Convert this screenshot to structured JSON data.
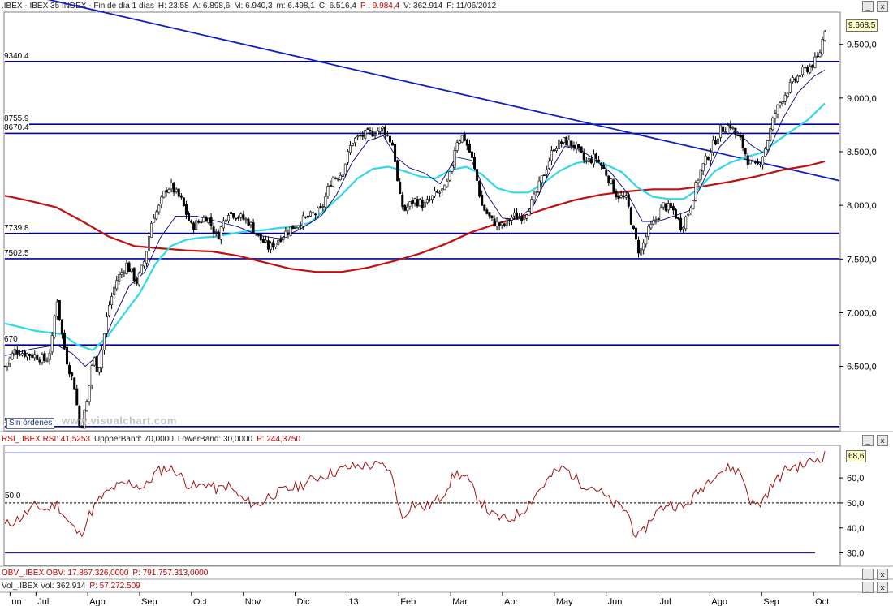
{
  "header_main": {
    "symbol": ".IBEX - IBEX 35 INDEX - Fin de día 1 días",
    "h": "H: 23:58",
    "a": "A: 6.898,6",
    "m": "M: 6.940,3",
    "mi": "m: 6.498,1",
    "c": "C: 6.516,4",
    "p": "P : 9.984,4",
    "v": "V: 362.914",
    "f": "F: 11/06/2012"
  },
  "header_rsi": {
    "label": "RSI_.IBEX RSI: 41,5253",
    "upper": "UppperBand: 70,0000",
    "lower": "LowerBand: 30,0000",
    "p": "P: 244,3750"
  },
  "header_obv": {
    "label": "OBV_.IBEX OBV: 17.867.326,0000",
    "p": "P: 791.757.313,0000"
  },
  "header_vol": {
    "label": "Vol_.IBEX Vol: 362.914",
    "p": "P: 57.272.509"
  },
  "controls": {
    "minimize": "_",
    "close": "x"
  },
  "watermark": "www.visualchart.com",
  "orders_label": "Sin órdenes",
  "colors": {
    "price": "#000000",
    "support_lines": "#0000a0",
    "trendline": "#1020c0",
    "ma_short": "#000080",
    "ma_mid": "#30d8e8",
    "ma_long": "#c01010",
    "rsi": "#a01010",
    "text_red": "#c00000"
  },
  "chart_data": [
    {
      "type": "candlestick",
      "title": ".IBEX - IBEX 35 INDEX",
      "ylim": [
        5900,
        9800
      ],
      "yticks": [
        "9.500,0",
        "9.000,0",
        "8.500,0",
        "8.000,0",
        "7.500,0",
        "7.000,0",
        "6.500,0"
      ],
      "ytick_values": [
        9500,
        9000,
        8500,
        8000,
        7500,
        7000,
        6500
      ],
      "last_value_label": "9.668,5",
      "last_value": 9668.5,
      "x_months": [
        "un",
        "Jul",
        "Ago",
        "Sep",
        "Oct",
        "Nov",
        "Dic",
        "13",
        "Feb",
        "Mar",
        "Abr",
        "May",
        "Jun",
        "Jul",
        "Ago",
        "Sep",
        "Oct"
      ],
      "x_month_positions": [
        0,
        0.5,
        1.5,
        2.5,
        3.5,
        4.5,
        5.5,
        6.5,
        7.5,
        8.5,
        9.5,
        10.5,
        11.5,
        12.5,
        13.5,
        14.5,
        15.5
      ],
      "x_range": [
        -0.1,
        16.0
      ],
      "horizontal_levels": [
        {
          "label": "9340.4",
          "value": 9340.4
        },
        {
          "label": "8755.9",
          "value": 8755.9
        },
        {
          "label": "8670.4",
          "value": 8670.4
        },
        {
          "label": "7739.8",
          "value": 7739.8
        },
        {
          "label": "7502.5",
          "value": 7502.5
        },
        {
          "label": "670",
          "value": 6700
        },
        {
          "label": "5939.4",
          "value": 5939.4
        }
      ],
      "trendline": {
        "from": [
          -0.1,
          10010
        ],
        "to": [
          16.0,
          8230
        ]
      },
      "price_close": [
        [
          -0.1,
          6500
        ],
        [
          0.1,
          6650
        ],
        [
          0.3,
          6620
        ],
        [
          0.5,
          6600
        ],
        [
          0.7,
          6550
        ],
        [
          0.8,
          6700
        ],
        [
          0.9,
          7150
        ],
        [
          1.0,
          6800
        ],
        [
          1.1,
          6550
        ],
        [
          1.25,
          6300
        ],
        [
          1.35,
          5900
        ],
        [
          1.5,
          6200
        ],
        [
          1.6,
          6600
        ],
        [
          1.7,
          6450
        ],
        [
          1.9,
          7050
        ],
        [
          2.05,
          7300
        ],
        [
          2.25,
          7450
        ],
        [
          2.45,
          7280
        ],
        [
          2.6,
          7500
        ],
        [
          2.75,
          7900
        ],
        [
          2.85,
          7950
        ],
        [
          3.0,
          8150
        ],
        [
          3.1,
          8180
        ],
        [
          3.3,
          8050
        ],
        [
          3.5,
          7800
        ],
        [
          3.8,
          7900
        ],
        [
          4.0,
          7700
        ],
        [
          4.2,
          7950
        ],
        [
          4.4,
          7900
        ],
        [
          4.6,
          7850
        ],
        [
          4.8,
          7700
        ],
        [
          5.0,
          7600
        ],
        [
          5.2,
          7700
        ],
        [
          5.4,
          7780
        ],
        [
          5.6,
          7850
        ],
        [
          5.8,
          7900
        ],
        [
          6.0,
          7950
        ],
        [
          6.2,
          8250
        ],
        [
          6.4,
          8300
        ],
        [
          6.6,
          8600
        ],
        [
          6.8,
          8650
        ],
        [
          7.0,
          8680
        ],
        [
          7.2,
          8720
        ],
        [
          7.4,
          8550
        ],
        [
          7.5,
          8100
        ],
        [
          7.6,
          7950
        ],
        [
          7.8,
          8050
        ],
        [
          8.0,
          8000
        ],
        [
          8.2,
          8100
        ],
        [
          8.4,
          8150
        ],
        [
          8.5,
          8300
        ],
        [
          8.6,
          8600
        ],
        [
          8.75,
          8650
        ],
        [
          8.9,
          8450
        ],
        [
          9.0,
          8250
        ],
        [
          9.1,
          8000
        ],
        [
          9.3,
          7850
        ],
        [
          9.5,
          7800
        ],
        [
          9.7,
          7900
        ],
        [
          9.9,
          7900
        ],
        [
          10.1,
          8050
        ],
        [
          10.3,
          8300
        ],
        [
          10.5,
          8550
        ],
        [
          10.7,
          8600
        ],
        [
          10.9,
          8550
        ],
        [
          11.1,
          8400
        ],
        [
          11.3,
          8450
        ],
        [
          11.5,
          8300
        ],
        [
          11.7,
          8100
        ],
        [
          11.9,
          8050
        ],
        [
          12.05,
          7700
        ],
        [
          12.15,
          7550
        ],
        [
          12.3,
          7750
        ],
        [
          12.5,
          7900
        ],
        [
          12.6,
          8000
        ],
        [
          12.8,
          7950
        ],
        [
          12.95,
          7800
        ],
        [
          13.1,
          7950
        ],
        [
          13.3,
          8300
        ],
        [
          13.5,
          8500
        ],
        [
          13.7,
          8700
        ],
        [
          13.9,
          8750
        ],
        [
          14.0,
          8650
        ],
        [
          14.1,
          8600
        ],
        [
          14.25,
          8400
        ],
        [
          14.4,
          8350
        ],
        [
          14.55,
          8500
        ],
        [
          14.75,
          8850
        ],
        [
          14.9,
          9000
        ],
        [
          15.1,
          9150
        ],
        [
          15.3,
          9250
        ],
        [
          15.45,
          9300
        ],
        [
          15.6,
          9380
        ],
        [
          15.72,
          9650
        ]
      ],
      "ma_short": [
        [
          -0.1,
          6600
        ],
        [
          0.4,
          6660
        ],
        [
          0.9,
          6700
        ],
        [
          1.2,
          6620
        ],
        [
          1.45,
          6500
        ],
        [
          1.7,
          6600
        ],
        [
          2.0,
          6950
        ],
        [
          2.3,
          7250
        ],
        [
          2.6,
          7380
        ],
        [
          2.9,
          7700
        ],
        [
          3.2,
          7900
        ],
        [
          3.6,
          7900
        ],
        [
          4.0,
          7850
        ],
        [
          4.4,
          7800
        ],
        [
          4.8,
          7720
        ],
        [
          5.2,
          7690
        ],
        [
          5.6,
          7780
        ],
        [
          6.0,
          7900
        ],
        [
          6.3,
          8100
        ],
        [
          6.6,
          8400
        ],
        [
          6.9,
          8600
        ],
        [
          7.2,
          8650
        ],
        [
          7.45,
          8450
        ],
        [
          7.7,
          8350
        ],
        [
          8.0,
          8300
        ],
        [
          8.3,
          8200
        ],
        [
          8.6,
          8450
        ],
        [
          8.9,
          8420
        ],
        [
          9.2,
          8100
        ],
        [
          9.5,
          7880
        ],
        [
          9.8,
          7870
        ],
        [
          10.1,
          8000
        ],
        [
          10.4,
          8300
        ],
        [
          10.7,
          8550
        ],
        [
          11.0,
          8520
        ],
        [
          11.3,
          8420
        ],
        [
          11.6,
          8300
        ],
        [
          11.9,
          8120
        ],
        [
          12.2,
          7850
        ],
        [
          12.5,
          7850
        ],
        [
          12.8,
          7900
        ],
        [
          13.1,
          7950
        ],
        [
          13.4,
          8250
        ],
        [
          13.7,
          8550
        ],
        [
          14.0,
          8700
        ],
        [
          14.3,
          8560
        ],
        [
          14.6,
          8470
        ],
        [
          14.9,
          8800
        ],
        [
          15.2,
          9050
        ],
        [
          15.5,
          9200
        ],
        [
          15.72,
          9260
        ]
      ],
      "ma_mid": [
        [
          -0.1,
          6900
        ],
        [
          0.5,
          6830
        ],
        [
          1.0,
          6800
        ],
        [
          1.3,
          6700
        ],
        [
          1.6,
          6650
        ],
        [
          1.9,
          6790
        ],
        [
          2.2,
          6990
        ],
        [
          2.5,
          7180
        ],
        [
          2.8,
          7450
        ],
        [
          3.1,
          7620
        ],
        [
          3.4,
          7680
        ],
        [
          3.7,
          7700
        ],
        [
          4.0,
          7710
        ],
        [
          4.3,
          7740
        ],
        [
          4.6,
          7760
        ],
        [
          4.9,
          7770
        ],
        [
          5.2,
          7790
        ],
        [
          5.5,
          7800
        ],
        [
          5.8,
          7840
        ],
        [
          6.1,
          7970
        ],
        [
          6.4,
          8100
        ],
        [
          6.7,
          8250
        ],
        [
          7.0,
          8340
        ],
        [
          7.3,
          8360
        ],
        [
          7.6,
          8320
        ],
        [
          7.9,
          8270
        ],
        [
          8.2,
          8250
        ],
        [
          8.5,
          8330
        ],
        [
          8.8,
          8360
        ],
        [
          9.1,
          8290
        ],
        [
          9.4,
          8160
        ],
        [
          9.7,
          8120
        ],
        [
          10.0,
          8120
        ],
        [
          10.3,
          8210
        ],
        [
          10.6,
          8320
        ],
        [
          10.9,
          8390
        ],
        [
          11.2,
          8420
        ],
        [
          11.5,
          8380
        ],
        [
          11.8,
          8310
        ],
        [
          12.1,
          8170
        ],
        [
          12.4,
          8080
        ],
        [
          12.7,
          8060
        ],
        [
          13.0,
          8060
        ],
        [
          13.3,
          8160
        ],
        [
          13.6,
          8320
        ],
        [
          13.9,
          8400
        ],
        [
          14.2,
          8450
        ],
        [
          14.5,
          8490
        ],
        [
          14.8,
          8600
        ],
        [
          15.1,
          8700
        ],
        [
          15.4,
          8800
        ],
        [
          15.72,
          8950
        ]
      ],
      "ma_long": [
        [
          -0.1,
          8090
        ],
        [
          0.4,
          8040
        ],
        [
          0.9,
          7980
        ],
        [
          1.4,
          7850
        ],
        [
          1.9,
          7710
        ],
        [
          2.4,
          7620
        ],
        [
          2.9,
          7600
        ],
        [
          3.4,
          7580
        ],
        [
          3.9,
          7570
        ],
        [
          4.4,
          7530
        ],
        [
          4.9,
          7470
        ],
        [
          5.4,
          7410
        ],
        [
          5.9,
          7380
        ],
        [
          6.4,
          7380
        ],
        [
          6.9,
          7420
        ],
        [
          7.4,
          7480
        ],
        [
          7.9,
          7550
        ],
        [
          8.4,
          7640
        ],
        [
          8.9,
          7750
        ],
        [
          9.4,
          7830
        ],
        [
          9.9,
          7900
        ],
        [
          10.4,
          7980
        ],
        [
          10.9,
          8050
        ],
        [
          11.4,
          8100
        ],
        [
          11.9,
          8130
        ],
        [
          12.4,
          8150
        ],
        [
          12.9,
          8150
        ],
        [
          13.4,
          8180
        ],
        [
          13.9,
          8220
        ],
        [
          14.4,
          8270
        ],
        [
          14.9,
          8330
        ],
        [
          15.4,
          8370
        ],
        [
          15.72,
          8410
        ]
      ]
    },
    {
      "type": "line",
      "title": "RSI_.IBEX RSI",
      "ylim": [
        25,
        73
      ],
      "yticks": [
        "60,0",
        "50,0",
        "40,0",
        "30,0"
      ],
      "ytick_values": [
        60,
        50,
        40,
        30
      ],
      "bands": [
        70,
        30
      ],
      "midline": {
        "label": "50.0",
        "value": 50
      },
      "last_value_label": "68,6",
      "last_value": 68.6,
      "series": [
        {
          "name": "RSI",
          "values": [
            [
              -0.1,
              41
            ],
            [
              0.2,
              44
            ],
            [
              0.5,
              49
            ],
            [
              0.7,
              47
            ],
            [
              0.9,
              50
            ],
            [
              1.1,
              43
            ],
            [
              1.35,
              37
            ],
            [
              1.55,
              46
            ],
            [
              1.75,
              52
            ],
            [
              2.0,
              56
            ],
            [
              2.3,
              58
            ],
            [
              2.6,
              56
            ],
            [
              2.8,
              62
            ],
            [
              3.0,
              64
            ],
            [
              3.2,
              63
            ],
            [
              3.4,
              58
            ],
            [
              3.6,
              56
            ],
            [
              3.8,
              58
            ],
            [
              4.0,
              55
            ],
            [
              4.2,
              57
            ],
            [
              4.5,
              51
            ],
            [
              4.8,
              49
            ],
            [
              5.0,
              53
            ],
            [
              5.3,
              55
            ],
            [
              5.6,
              57
            ],
            [
              5.9,
              60
            ],
            [
              6.2,
              62
            ],
            [
              6.5,
              64
            ],
            [
              6.8,
              65
            ],
            [
              7.1,
              65
            ],
            [
              7.3,
              64
            ],
            [
              7.45,
              55
            ],
            [
              7.55,
              43
            ],
            [
              7.75,
              50
            ],
            [
              8.0,
              48
            ],
            [
              8.3,
              52
            ],
            [
              8.6,
              62
            ],
            [
              8.8,
              60
            ],
            [
              9.0,
              53
            ],
            [
              9.3,
              45
            ],
            [
              9.6,
              43
            ],
            [
              9.9,
              47
            ],
            [
              10.2,
              55
            ],
            [
              10.5,
              62
            ],
            [
              10.7,
              64
            ],
            [
              11.0,
              58
            ],
            [
              11.3,
              56
            ],
            [
              11.6,
              50
            ],
            [
              11.9,
              47
            ],
            [
              12.05,
              38
            ],
            [
              12.15,
              36
            ],
            [
              12.4,
              45
            ],
            [
              12.7,
              50
            ],
            [
              13.0,
              48
            ],
            [
              13.3,
              55
            ],
            [
              13.6,
              62
            ],
            [
              13.9,
              64
            ],
            [
              14.1,
              62
            ],
            [
              14.3,
              50
            ],
            [
              14.45,
              49
            ],
            [
              14.7,
              57
            ],
            [
              15.0,
              64
            ],
            [
              15.3,
              65
            ],
            [
              15.5,
              67
            ],
            [
              15.72,
              69
            ]
          ]
        }
      ]
    }
  ]
}
